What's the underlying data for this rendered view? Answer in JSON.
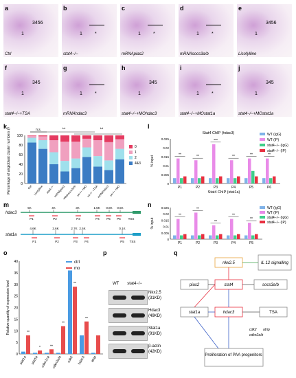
{
  "panel_letters": [
    "a",
    "b",
    "c",
    "d",
    "e",
    "f",
    "g",
    "h",
    "i",
    "j",
    "k",
    "l",
    "m",
    "n",
    "o",
    "p",
    "q"
  ],
  "photos": [
    {
      "letter": "a",
      "caption": "Ctrl",
      "numbers": "3456",
      "num1": "1"
    },
    {
      "letter": "b",
      "caption": "stat4−/−",
      "numbers": "",
      "num1": "1"
    },
    {
      "letter": "c",
      "caption": "mRNApias2",
      "numbers": "",
      "num1": "1"
    },
    {
      "letter": "d",
      "caption": "mRNAsocs3a/b",
      "numbers": "",
      "num1": "1"
    },
    {
      "letter": "e",
      "caption": "Lisofylline",
      "numbers": "3456",
      "num1": "1"
    },
    {
      "letter": "f",
      "caption": "stat4−/−+TSA",
      "numbers": "345",
      "num1": "1"
    },
    {
      "letter": "g",
      "caption": "mRNAhdac3",
      "numbers": "",
      "num1": "1"
    },
    {
      "letter": "h",
      "caption": "stat4−/−+MOhdac3",
      "numbers": "345",
      "num1": "1"
    },
    {
      "letter": "i",
      "caption": "stat4−/−+MOstat1a",
      "numbers": "",
      "num1": "1"
    },
    {
      "letter": "j",
      "caption": "stat4−/−+MOstat1a",
      "numbers": "345",
      "num1": "1"
    }
  ],
  "chart_data": [
    {
      "type": "bar",
      "panel": "k",
      "ylabel": "Percentage of angioblast cluster numbers (%)",
      "categories": [
        "Ctrl",
        "Lisofylline",
        "stat4−/−",
        "mRNApias2",
        "mRNAsocs3a/b",
        "s4−/− +MO",
        "s4−/− +TSA",
        "mRNAhdac3",
        "s4−/− +MO"
      ],
      "ylim": [
        0,
        100
      ],
      "legend": [
        "0",
        "1",
        "2",
        "4&3"
      ],
      "series": [
        {
          "name": "4&3",
          "values": [
            85,
            72,
            40,
            25,
            32,
            55,
            35,
            28,
            50
          ]
        },
        {
          "name": "2",
          "values": [
            10,
            18,
            25,
            22,
            20,
            20,
            22,
            20,
            22
          ]
        },
        {
          "name": "1",
          "values": [
            4,
            8,
            25,
            40,
            35,
            18,
            33,
            38,
            20
          ]
        },
        {
          "name": "0",
          "values": [
            1,
            2,
            10,
            13,
            13,
            7,
            10,
            14,
            8
          ]
        }
      ],
      "annotations": [
        "n.s.",
        "**",
        "**"
      ]
    },
    {
      "type": "bar",
      "panel": "l",
      "title": "Stat4 ChIP (hdac3)",
      "ylabel": "% input",
      "xlabel": "Stat4 ChIP (stat1a)",
      "categories": [
        "P1",
        "P2",
        "P3",
        "P4",
        "P5",
        "P6"
      ],
      "ylim": [
        0,
        0.025
      ],
      "series": [
        {
          "name": "WT (IgG)",
          "values": [
            0.003,
            0.003,
            0.003,
            0.003,
            0.003,
            0.003
          ]
        },
        {
          "name": "WT (IP)",
          "values": [
            0.014,
            0.013,
            0.022,
            0.013,
            0.014,
            0.014
          ]
        },
        {
          "name": "stat4−/− (IgG)",
          "values": [
            0.003,
            0.003,
            0.003,
            0.003,
            0.007,
            0.003
          ]
        },
        {
          "name": "stat4−/− (IP)",
          "values": [
            0.004,
            0.004,
            0.004,
            0.004,
            0.004,
            0.004
          ]
        }
      ],
      "annotations": [
        "**",
        "**",
        "***",
        "**",
        "**",
        "**"
      ]
    },
    {
      "type": "bar",
      "panel": "n",
      "ylabel": "% input",
      "categories": [
        "P1",
        "P2",
        "P3",
        "P4",
        "P5"
      ],
      "ylim": [
        0,
        0.025
      ],
      "series": [
        {
          "name": "WT (IgG)",
          "values": [
            0.003,
            0.003,
            0.003,
            0.003,
            0.003
          ]
        },
        {
          "name": "WT (IP)",
          "values": [
            0.016,
            0.021,
            0.011,
            0.016,
            0.013
          ]
        },
        {
          "name": "stat4−/− (IgG)",
          "values": [
            0.003,
            0.003,
            0.003,
            0.003,
            0.003
          ]
        },
        {
          "name": "stat4−/− (IP)",
          "values": [
            0.004,
            0.004,
            0.004,
            0.004,
            0.004
          ]
        }
      ],
      "annotations": [
        "**",
        "**",
        "**",
        "**",
        "**"
      ]
    },
    {
      "type": "bar",
      "panel": "o",
      "ylabel": "Relative quantity of expression level",
      "categories": [
        "stat1a",
        "stat1b",
        "cdkn1ca",
        "cdkn2a/b",
        "cdk2",
        "hdac3",
        "atrip"
      ],
      "ylim": [
        0,
        40
      ],
      "series": [
        {
          "name": "ctrl",
          "values": [
            1,
            0.5,
            0.5,
            0.5,
            36,
            8,
            0.5
          ]
        },
        {
          "name": "mo",
          "values": [
            8,
            1.5,
            2,
            12,
            29,
            14,
            8
          ]
        }
      ],
      "annotations": [
        "**",
        "*",
        "**",
        "**",
        "**",
        "**"
      ]
    }
  ],
  "panel_m": {
    "gene1": "hdac3",
    "gene1_sites": [
      "5K",
      "4K",
      "3K",
      "1.5K",
      "0.8K",
      "0.5K"
    ],
    "gene1_primers": [
      "P1",
      "P2",
      "P3",
      "P4",
      "P5",
      "P6",
      "TSS"
    ],
    "gene2": "stat1a",
    "gene2_sites": [
      "4.6K",
      "3.6K",
      "2.7K",
      "2.5K",
      "0.1K"
    ],
    "gene2_primers": [
      "P1",
      "P2",
      "P3",
      "P4",
      "P5",
      "TSS"
    ]
  },
  "panel_p": {
    "cols": [
      "WT",
      "stat4−/−"
    ],
    "rows": [
      "Nkx2.5",
      "(31KD)",
      "Hdac3",
      "(49KD)",
      "Stat1a",
      "(91KD)",
      "β-actin",
      "(42KD)"
    ]
  },
  "panel_q": {
    "nodes": [
      "nkx2.5",
      "IL 12 signalling",
      "pias2",
      "stat4",
      "socs3a/b",
      "stat1a",
      "hdac3",
      "TSA",
      "cdk2",
      "atrip",
      "cdkn2a/b",
      "Proliferation of PAA progenitors"
    ]
  }
}
